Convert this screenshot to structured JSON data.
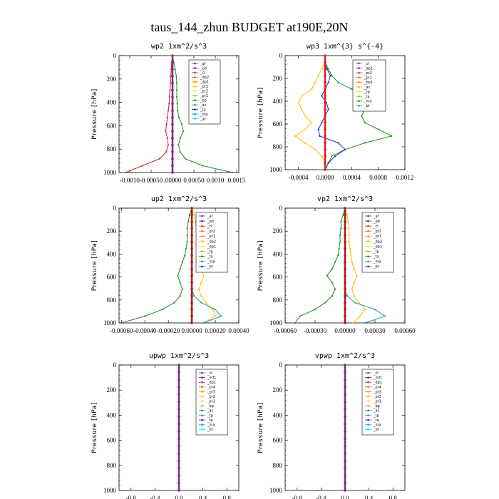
{
  "figure_title": "taus_144_zhun  BUDGET at190E,20N",
  "chart_data": [
    {
      "type": "line",
      "title": "wp2  1xm^2/s^3",
      "ylabel": "Pressure [hPa]",
      "ylim": [
        1000,
        0
      ],
      "yticks": [
        "0",
        "200",
        "400",
        "600",
        "800",
        "1000"
      ],
      "xlim": [
        -0.00125,
        0.00155
      ],
      "xticks": [
        {
          "v": -0.001,
          "t": "-0.0010"
        },
        {
          "v": -0.0005,
          "t": "-0.00050"
        },
        {
          "v": 0.0,
          "t": ".00000"
        },
        {
          "v": 0.0005,
          "t": "0.00050"
        },
        {
          "v": 0.001,
          "t": "0.0010"
        },
        {
          "v": 0.0015,
          "t": "0.0015"
        }
      ],
      "legend": [
        "_af",
        "_pd",
        "_cl",
        "_dp2",
        "_dp1",
        "_pr3",
        "_pr2",
        "_pr1",
        "_bp",
        "_ac",
        "_ta",
        "_ma",
        "_at"
      ],
      "series": [
        {
          "color": "#228B22",
          "values": [
            0,
            3e-05,
            6e-05,
            9e-05,
            0.0001,
            0.0001,
            0.0001,
            0.00011,
            0.00012,
            0.00015,
            0.00022,
            0.00025,
            0.00018,
            0.00014,
            0.00018,
            0.0003,
            0.0007,
            0.0014
          ]
        },
        {
          "color": "#dd2222",
          "values": [
            0,
            -2e-05,
            -3e-05,
            -4e-05,
            -5e-05,
            -6e-05,
            -7e-05,
            -8e-05,
            -0.0001,
            -0.00012,
            -0.00014,
            -0.00016,
            -0.00012,
            -0.0001,
            -0.00015,
            -0.0003,
            -0.0007,
            -0.0011
          ]
        },
        {
          "color": "#7b2a8f",
          "values": [
            0,
            0,
            0,
            0,
            0,
            0,
            0,
            0,
            0,
            0,
            0,
            0,
            0,
            0,
            0,
            0,
            0,
            0
          ]
        }
      ]
    },
    {
      "type": "line",
      "title": "wp3  1xm^{3} s^{-4}",
      "ylabel": "Pressure [hPa]",
      "ylim": [
        1000,
        0
      ],
      "yticks": [
        "0",
        "200",
        "400",
        "600",
        "800",
        "1000"
      ],
      "xlim": [
        -0.0006,
        0.0012
      ],
      "xticks": [
        {
          "v": -0.0004,
          "t": "-0.0004"
        },
        {
          "v": 0.0,
          "t": "0.0000"
        },
        {
          "v": 0.0004,
          "t": "0.0004"
        },
        {
          "v": 0.0008,
          "t": "0.0008"
        },
        {
          "v": 0.0012,
          "t": "0.0012"
        }
      ],
      "legend": [
        "_cl",
        "_dp1",
        "_pr2",
        "_pr1",
        "_bp1",
        "_ac",
        "_tp",
        "_ta",
        "_ma",
        "_bt"
      ],
      "series": [
        {
          "color": "#228B22",
          "values": [
            0,
            0,
            5e-05,
            0.0001,
            0.0002,
            0.0004,
            0.0006,
            0.0007,
            0.0006,
            0.00055,
            0.0006,
            0.0008,
            0.001,
            0.0006,
            0.0003,
            0.0001,
            5e-05,
            0
          ]
        },
        {
          "color": "#ffbb00",
          "values": [
            0,
            0,
            -5e-05,
            -0.0001,
            -0.00015,
            -0.0002,
            -0.00035,
            -0.0004,
            -0.00035,
            -0.0003,
            -0.0002,
            -0.0003,
            -0.00045,
            -0.0003,
            -0.00015,
            -5e-05,
            0,
            0
          ]
        },
        {
          "color": "#2222cc",
          "values": [
            0,
            0,
            3e-05,
            8e-05,
            5e-05,
            0.0,
            -5e-05,
            2e-05,
            5e-05,
            0.0,
            -5e-05,
            -0.0001,
            -8e-05,
            0.0002,
            0.0003,
            0.00015,
            5e-05,
            0
          ]
        },
        {
          "color": "#dd2222",
          "values": [
            0,
            0,
            0,
            0,
            0,
            0,
            0,
            0,
            0,
            0,
            0,
            0,
            0,
            0,
            0,
            0,
            0,
            0
          ]
        }
      ]
    },
    {
      "type": "line",
      "title": "up2  1xm^2/s^3",
      "ylabel": "Pressure [hPa]",
      "ylim": [
        1000,
        0
      ],
      "yticks": [
        "0",
        "200",
        "400",
        "600",
        "800",
        "1000"
      ],
      "xlim": [
        -0.00062,
        0.0004
      ],
      "xticks": [
        {
          "v": -0.0006,
          "t": "-0.00060"
        },
        {
          "v": -0.0004,
          "t": "-0.00040"
        },
        {
          "v": -0.0002,
          "t": "-0.00020"
        },
        {
          "v": 0.0,
          "t": "0.00000"
        },
        {
          "v": 0.0002,
          "t": "0.00020"
        },
        {
          "v": 0.0004,
          "t": "0.00040"
        }
      ],
      "legend": [
        "_af",
        "_pd",
        "_cl",
        "_pr2",
        "_pr1",
        "_dp2",
        "_dp1",
        "_tp",
        "_ta",
        "_ma",
        "_bt"
      ],
      "series": [
        {
          "color": "#228B22",
          "values": [
            0,
            -2e-05,
            -3e-05,
            -4e-05,
            -4e-05,
            -4e-05,
            -5e-05,
            -6e-05,
            -8e-05,
            -0.0001,
            -0.00012,
            -0.0001,
            -8e-05,
            -0.0001,
            -0.00015,
            -0.00025,
            -0.0004,
            -0.0006
          ]
        },
        {
          "color": "#ffbb00",
          "values": [
            0,
            2e-05,
            3e-05,
            4e-05,
            4e-05,
            4e-05,
            5e-05,
            6e-05,
            7e-05,
            8e-05,
            0.0001,
            8e-05,
            6e-05,
            8e-05,
            0.00012,
            0.00018,
            0.0002,
            0.0001
          ]
        },
        {
          "color": "#1a9b9b",
          "values": [
            0,
            0,
            0,
            0,
            0,
            0,
            0,
            0,
            0,
            0,
            0,
            0,
            0,
            2e-05,
            8e-05,
            0.0002,
            0.00025,
            0.0001
          ]
        },
        {
          "color": "#b01818",
          "values": [
            0,
            0,
            0,
            0,
            0,
            0,
            0,
            0,
            0,
            0,
            0,
            0,
            0,
            0,
            0,
            0,
            0,
            0
          ]
        }
      ]
    },
    {
      "type": "line",
      "title": "vp2  1xm^2/s^3",
      "ylabel": "Pressure [hPa]",
      "ylim": [
        1000,
        0
      ],
      "yticks": [
        "0",
        "200",
        "400",
        "600",
        "800",
        "1000"
      ],
      "xlim": [
        -0.0006,
        0.0006
      ],
      "xticks": [
        {
          "v": -0.0006,
          "t": "-0.00060"
        },
        {
          "v": -0.0003,
          "t": "-0.00030"
        },
        {
          "v": 0.0,
          "t": "0.00000"
        },
        {
          "v": 0.0003,
          "t": "0.00030"
        },
        {
          "v": 0.0006,
          "t": "0.00060"
        }
      ],
      "legend": [
        "_af",
        "_pd",
        "_cl",
        "_pr2",
        "_pr1",
        "_dp2",
        "_dp1",
        "_tp",
        "_ta",
        "_ma",
        "_bt"
      ],
      "series": [
        {
          "color": "#228B22",
          "values": [
            0,
            -2e-05,
            -4e-05,
            -4e-05,
            -5e-05,
            -5e-05,
            -6e-05,
            -7e-05,
            -0.0001,
            -0.00013,
            -0.00018,
            -0.00013,
            -0.0001,
            -0.00013,
            -0.0002,
            -0.0003,
            -0.00045,
            -0.0005
          ]
        },
        {
          "color": "#ffbb00",
          "values": [
            0,
            2e-05,
            3e-05,
            4e-05,
            4e-05,
            4e-05,
            5e-05,
            6e-05,
            7e-05,
            9e-05,
            0.00012,
            9e-05,
            7e-05,
            9e-05,
            0.00014,
            0.0002,
            0.00015,
            8e-05
          ]
        },
        {
          "color": "#1a9b9b",
          "values": [
            0,
            0,
            0,
            0,
            0,
            0,
            0,
            0,
            0,
            0,
            0,
            0,
            0,
            2e-05,
            0.0001,
            0.0003,
            0.0004,
            0.0002
          ]
        },
        {
          "color": "#b01818",
          "values": [
            0,
            0,
            0,
            0,
            0,
            0,
            0,
            0,
            0,
            0,
            0,
            0,
            0,
            0,
            0,
            0,
            0,
            0
          ]
        }
      ]
    },
    {
      "type": "line",
      "title": "upwp  1xm^2/s^3",
      "ylabel": "Pressure [hPa]",
      "ylim": [
        1000,
        0
      ],
      "yticks": [
        "0",
        "200",
        "400",
        "600",
        "800",
        "1000"
      ],
      "xlim": [
        -1.0,
        1.0
      ],
      "xticks": [
        {
          "v": -0.8,
          "t": "-0.8"
        },
        {
          "v": -0.4,
          "t": "-0.4"
        },
        {
          "v": 0.0,
          "t": "0.0"
        },
        {
          "v": 0.4,
          "t": "0.4"
        },
        {
          "v": 0.8,
          "t": "0.8"
        }
      ],
      "legend": [
        "_cl",
        "_mf1",
        "_dp1",
        "_pr4",
        "_pr3",
        "_pr2",
        "_pr1",
        "_bp",
        "_ac",
        "_tp",
        "_ta",
        "_ma",
        "_bt"
      ],
      "series": [
        {
          "color": "#7b2a8f",
          "values": [
            0,
            0,
            0,
            0,
            0,
            0,
            0,
            0,
            0,
            0,
            0,
            0,
            0,
            0,
            0,
            0,
            0,
            0
          ]
        }
      ]
    },
    {
      "type": "line",
      "title": "vpwp  1xm^2/s^3",
      "ylabel": "Pressure [hPa]",
      "ylim": [
        1000,
        0
      ],
      "yticks": [
        "0",
        "200",
        "400",
        "600",
        "800",
        "1000"
      ],
      "xlim": [
        -1.0,
        1.0
      ],
      "xticks": [
        {
          "v": -0.8,
          "t": "-0.8"
        },
        {
          "v": -0.4,
          "t": "-0.4"
        },
        {
          "v": 0.0,
          "t": "0.0"
        },
        {
          "v": 0.4,
          "t": "0.4"
        },
        {
          "v": 0.8,
          "t": "0.8"
        }
      ],
      "legend": [
        "_cl",
        "_mf1",
        "_dp1",
        "_pr4",
        "_pr3",
        "_pr2",
        "_pr1",
        "_bp",
        "_ac",
        "_tp",
        "_ta",
        "_ma",
        "_bt"
      ],
      "series": [
        {
          "color": "#7b2a8f",
          "values": [
            0,
            0,
            0,
            0,
            0,
            0,
            0,
            0,
            0,
            0,
            0,
            0,
            0,
            0,
            0,
            0,
            0,
            0
          ]
        }
      ]
    }
  ],
  "legend_colors": [
    "#7b2a8f",
    "#6a0dad",
    "#dd2222",
    "#ff5555",
    "#ff8800",
    "#ffbb00",
    "#ffdd33",
    "#66cc33",
    "#228B22",
    "#1a9b9b",
    "#2222cc",
    "#00aaaa",
    "#00e5ff"
  ]
}
